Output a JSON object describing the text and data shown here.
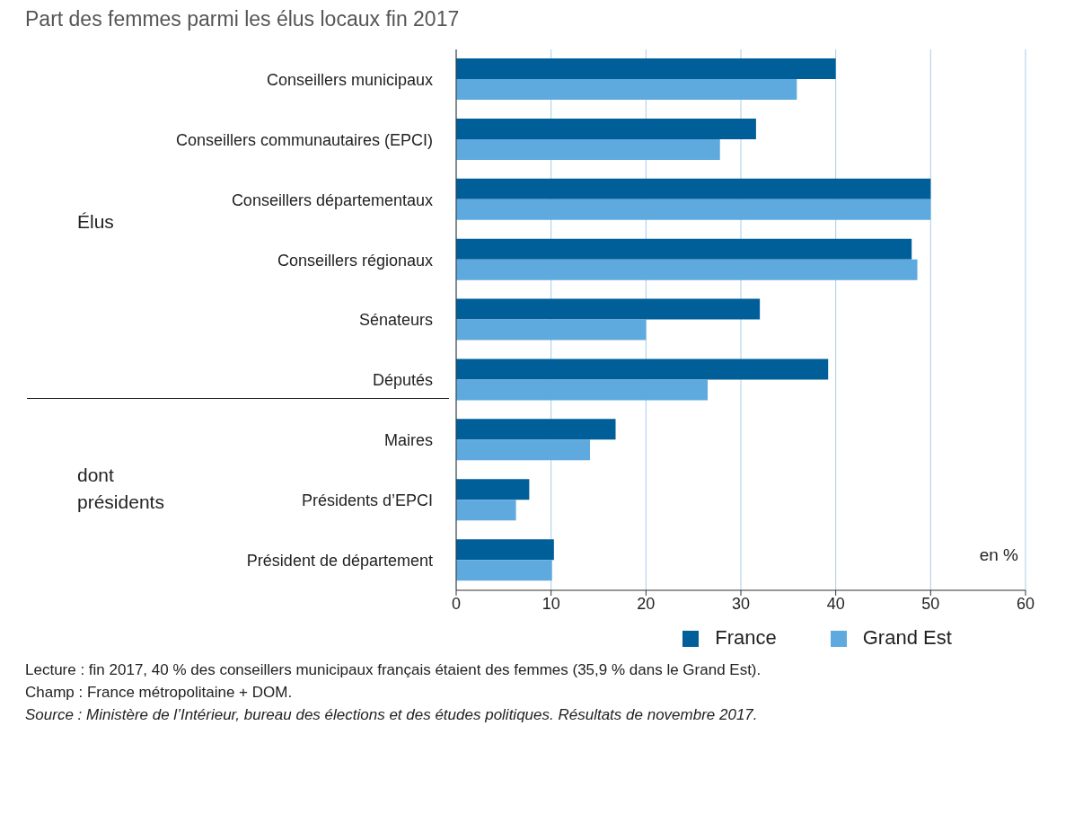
{
  "chart_data": {
    "type": "bar",
    "orientation": "horizontal",
    "title": "Part des femmes parmi les élus locaux fin 2017",
    "categories": [
      "Conseillers municipaux",
      "Conseillers communautaires (EPCI)",
      "Conseillers départementaux",
      "Conseillers régionaux",
      "Sénateurs",
      "Députés",
      "Maires",
      "Présidents d’EPCI",
      "Président de département"
    ],
    "series": [
      {
        "name": "France",
        "color": "#005f99",
        "values": [
          40.0,
          31.6,
          50.0,
          48.0,
          32.0,
          39.2,
          16.8,
          7.7,
          10.3
        ]
      },
      {
        "name": "Grand Est",
        "color": "#5ea9dd",
        "values": [
          35.9,
          27.8,
          50.0,
          48.6,
          20.0,
          26.5,
          14.1,
          6.3,
          10.1
        ]
      }
    ],
    "xlim": [
      0,
      60
    ],
    "xticks": [
      0,
      10,
      20,
      30,
      40,
      50,
      60
    ],
    "grid": "x",
    "legend": "bottom",
    "annotations": [
      "Élus",
      "dont présidents",
      "en %",
      "Lecture : fin 2017, 40 % des conseillers municipaux français étaient des femmes (35,9 % dans le Grand Est).",
      "Champ : France métropolitaine + DOM.",
      "Source : Ministère de l’Intérieur, bureau des élections et des études politiques. Résultats de novembre 2017."
    ]
  }
}
